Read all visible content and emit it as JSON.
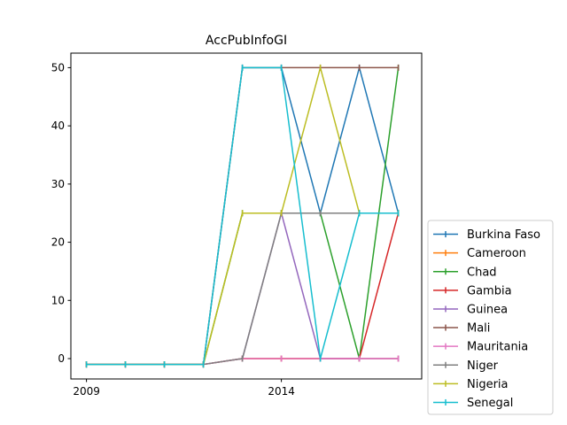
{
  "chart_data": {
    "type": "line",
    "title": "AccPubInfoGI",
    "xlabel": "",
    "ylabel": "",
    "x": [
      2009,
      2010,
      2011,
      2012,
      2013,
      2014,
      2015,
      2016,
      2017
    ],
    "x_ticks": [
      "2009",
      "2014"
    ],
    "y_ticks": [
      "0",
      "10",
      "20",
      "30",
      "40",
      "50"
    ],
    "xlim": [
      2008.6,
      2017.6
    ],
    "ylim": [
      -3.5,
      52.5
    ],
    "grid": false,
    "legend_position": "lower right, outside plot",
    "series": [
      {
        "name": "Burkina Faso",
        "color": "#1f77b4",
        "values": [
          -1,
          -1,
          -1,
          -1,
          50,
          50,
          25,
          50,
          25
        ]
      },
      {
        "name": "Cameroon",
        "color": "#ff7f0e",
        "values": [
          -1,
          -1,
          -1,
          -1,
          0,
          0,
          0,
          0,
          0
        ]
      },
      {
        "name": "Chad",
        "color": "#2ca02c",
        "values": [
          -1,
          -1,
          -1,
          -1,
          25,
          25,
          25,
          0,
          50
        ]
      },
      {
        "name": "Gambia",
        "color": "#d62728",
        "values": [
          -1,
          -1,
          -1,
          -1,
          0,
          0,
          0,
          0,
          25
        ]
      },
      {
        "name": "Guinea",
        "color": "#9467bd",
        "values": [
          -1,
          -1,
          -1,
          -1,
          0,
          25,
          0,
          0,
          0
        ]
      },
      {
        "name": "Mali",
        "color": "#8c564b",
        "values": [
          -1,
          -1,
          -1,
          -1,
          50,
          50,
          50,
          50,
          50
        ]
      },
      {
        "name": "Mauritania",
        "color": "#e377c2",
        "values": [
          -1,
          -1,
          -1,
          -1,
          0,
          0,
          0,
          0,
          0
        ]
      },
      {
        "name": "Niger",
        "color": "#7f7f7f",
        "values": [
          -1,
          -1,
          -1,
          -1,
          0,
          25,
          25,
          25,
          25
        ]
      },
      {
        "name": "Nigeria",
        "color": "#bcbd22",
        "values": [
          -1,
          -1,
          -1,
          -1,
          25,
          25,
          50,
          25,
          25
        ]
      },
      {
        "name": "Senegal",
        "color": "#17becf",
        "values": [
          -1,
          -1,
          -1,
          -1,
          50,
          50,
          0,
          25,
          25
        ]
      }
    ]
  }
}
